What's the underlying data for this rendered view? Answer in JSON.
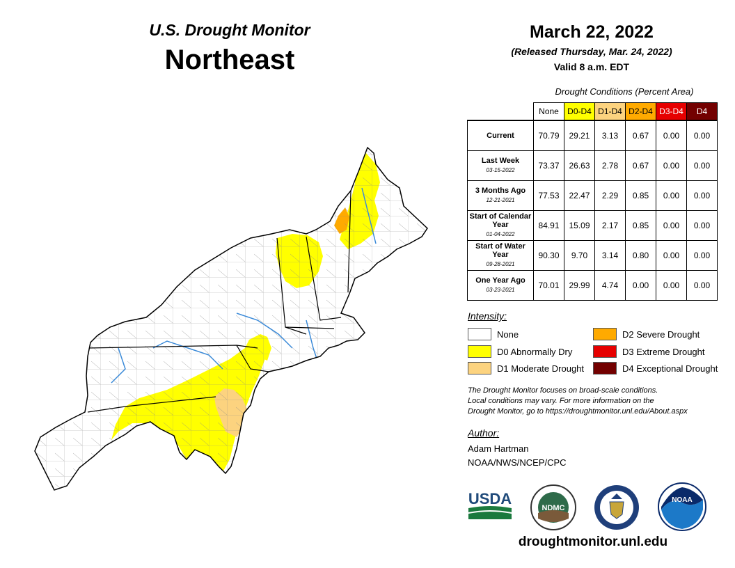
{
  "header": {
    "subtitle": "U.S. Drought Monitor",
    "region": "Northeast",
    "date": "March 22, 2022",
    "released": "(Released Thursday, Mar. 24, 2022)",
    "valid": "Valid 8 a.m. EDT"
  },
  "conditions_table": {
    "caption": "Drought Conditions (Percent Area)",
    "columns": [
      {
        "label": "None",
        "color": "#ffffff",
        "text_color": "#000000"
      },
      {
        "label": "D0-D4",
        "color": "#ffff00",
        "text_color": "#000000"
      },
      {
        "label": "D1-D4",
        "color": "#fcd37f",
        "text_color": "#000000"
      },
      {
        "label": "D2-D4",
        "color": "#ffaa00",
        "text_color": "#000000"
      },
      {
        "label": "D3-D4",
        "color": "#e60000",
        "text_color": "#ffffff"
      },
      {
        "label": "D4",
        "color": "#730000",
        "text_color": "#ffffff"
      }
    ],
    "rows": [
      {
        "label": "Current",
        "date": "",
        "values": [
          "70.79",
          "29.21",
          "3.13",
          "0.67",
          "0.00",
          "0.00"
        ]
      },
      {
        "label": "Last Week",
        "date": "03-15-2022",
        "values": [
          "73.37",
          "26.63",
          "2.78",
          "0.67",
          "0.00",
          "0.00"
        ]
      },
      {
        "label": "3 Months Ago",
        "date": "12-21-2021",
        "values": [
          "77.53",
          "22.47",
          "2.29",
          "0.85",
          "0.00",
          "0.00"
        ]
      },
      {
        "label": "Start of Calendar Year",
        "date": "01-04-2022",
        "values": [
          "84.91",
          "15.09",
          "2.17",
          "0.85",
          "0.00",
          "0.00"
        ]
      },
      {
        "label": "Start of Water Year",
        "date": "09-28-2021",
        "values": [
          "90.30",
          "9.70",
          "3.14",
          "0.80",
          "0.00",
          "0.00"
        ]
      },
      {
        "label": "One Year Ago",
        "date": "03-23-2021",
        "values": [
          "70.01",
          "29.99",
          "4.74",
          "0.00",
          "0.00",
          "0.00"
        ]
      }
    ]
  },
  "legend": {
    "title": "Intensity:",
    "items": [
      {
        "label": "None",
        "color": "#ffffff"
      },
      {
        "label": "D0 Abnormally Dry",
        "color": "#ffff00"
      },
      {
        "label": "D1 Moderate Drought",
        "color": "#fcd37f"
      },
      {
        "label": "D2 Severe Drought",
        "color": "#ffaa00"
      },
      {
        "label": "D3 Extreme Drought",
        "color": "#e60000"
      },
      {
        "label": "D4 Exceptional Drought",
        "color": "#730000"
      }
    ]
  },
  "note": {
    "line1": "The Drought Monitor focuses on broad-scale conditions.",
    "line2": "Local conditions may vary. For more information on the",
    "line3": "Drought Monitor, go to https://droughtmonitor.unl.edu/About.aspx"
  },
  "author": {
    "title": "Author:",
    "name": "Adam Hartman",
    "org": "NOAA/NWS/NCEP/CPC"
  },
  "logos": {
    "usda": "USDA",
    "ndmc": "NDMC",
    "noaa": "NOAA"
  },
  "footer": {
    "url": "droughtmonitor.unl.edu"
  }
}
